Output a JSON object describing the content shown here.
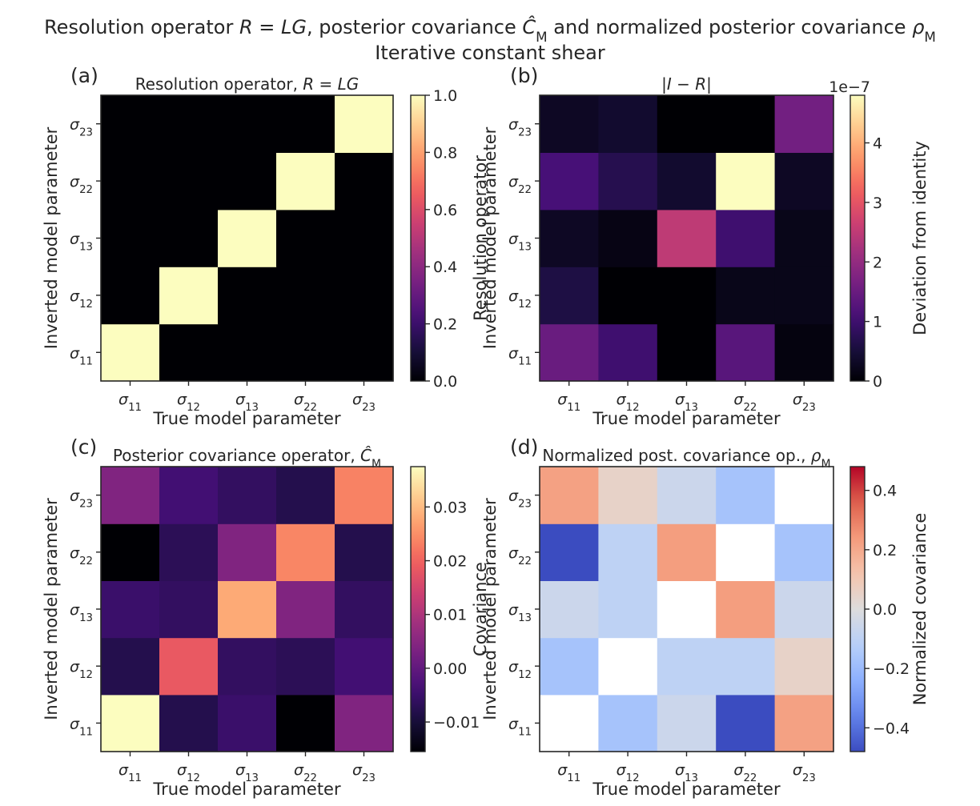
{
  "figure": {
    "suptitle_line1": "Resolution operator R = LG, posterior covariance Ĉ_M and normalized posterior covariance ρ_M",
    "suptitle_line2": "Iterative constant shear"
  },
  "chart_data": [
    {
      "panel_label": "(a)",
      "type": "heatmap",
      "title": "Resolution operator, R = LG",
      "xlabel": "True model parameter",
      "ylabel": "Inverted model parameter",
      "x_ticklabels": [
        "σ11",
        "σ12",
        "σ13",
        "σ22",
        "σ23"
      ],
      "y_ticklabels": [
        "σ11",
        "σ12",
        "σ13",
        "σ22",
        "σ23"
      ],
      "colormap": "magma",
      "colorbar": {
        "label": "Resolution operator",
        "min": 0.0,
        "max": 1.0,
        "ticks": [
          0.0,
          0.2,
          0.4,
          0.6,
          0.8,
          1.0
        ],
        "ticklabels": [
          "0.0",
          "0.2",
          "0.4",
          "0.6",
          "0.8",
          "1.0"
        ],
        "offset_text": ""
      },
      "matrix_rows_bottom_to_top": [
        [
          1,
          0,
          0,
          0,
          0
        ],
        [
          0,
          1,
          0,
          0,
          0
        ],
        [
          0,
          0,
          1,
          0,
          0
        ],
        [
          0,
          0,
          0,
          1,
          0
        ],
        [
          0,
          0,
          0,
          0,
          1
        ]
      ]
    },
    {
      "panel_label": "(b)",
      "type": "heatmap",
      "title": "|I − R|",
      "xlabel": "True model parameter",
      "ylabel": "Inverted model parameter",
      "x_ticklabels": [
        "σ11",
        "σ12",
        "σ13",
        "σ22",
        "σ23"
      ],
      "y_ticklabels": [
        "σ11",
        "σ12",
        "σ13",
        "σ22",
        "σ23"
      ],
      "colormap": "magma",
      "colorbar": {
        "label": "Deviation from identity",
        "min": 0.0,
        "max": 4.8,
        "ticks": [
          0,
          1,
          2,
          3,
          4
        ],
        "ticklabels": [
          "0",
          "1",
          "2",
          "3",
          "4"
        ],
        "offset_text": "1e−7"
      },
      "matrix_rows_bottom_to_top": [
        [
          1.5,
          1.0,
          0.0,
          1.3,
          0.1
        ],
        [
          0.6,
          0.0,
          0.0,
          0.2,
          0.2
        ],
        [
          0.3,
          0.15,
          2.5,
          1.0,
          0.2
        ],
        [
          1.1,
          0.7,
          0.4,
          4.8,
          0.3
        ],
        [
          0.3,
          0.4,
          0.0,
          0.0,
          1.6
        ]
      ]
    },
    {
      "panel_label": "(c)",
      "type": "heatmap",
      "title": "Posterior covariance operator, Ĉ_M",
      "xlabel": "True model parameter",
      "ylabel": "Inverted model parameter",
      "x_ticklabels": [
        "σ11",
        "σ12",
        "σ13",
        "σ22",
        "σ23"
      ],
      "y_ticklabels": [
        "σ11",
        "σ12",
        "σ13",
        "σ22",
        "σ23"
      ],
      "colormap": "magma",
      "colorbar": {
        "label": "Covariance",
        "min": -0.0155,
        "max": 0.0375,
        "ticks": [
          -0.01,
          0.0,
          0.01,
          0.02,
          0.03
        ],
        "ticklabels": [
          "−0.01",
          "0.00",
          "0.01",
          "0.02",
          "0.03"
        ],
        "offset_text": ""
      },
      "matrix_rows_bottom_to_top": [
        [
          0.0375,
          -0.008,
          -0.005,
          -0.0155,
          0.004
        ],
        [
          -0.008,
          0.0185,
          -0.006,
          -0.007,
          -0.004
        ],
        [
          -0.005,
          -0.006,
          0.028,
          0.004,
          -0.006
        ],
        [
          -0.0155,
          -0.007,
          0.004,
          0.024,
          -0.008
        ],
        [
          0.004,
          -0.004,
          -0.006,
          -0.008,
          0.0235
        ]
      ]
    },
    {
      "panel_label": "(d)",
      "type": "heatmap",
      "title": "Normalized post. covariance op., ρ_M",
      "xlabel": "True model parameter",
      "ylabel": "Inverted model parameter",
      "x_ticklabels": [
        "σ11",
        "σ12",
        "σ13",
        "σ22",
        "σ23"
      ],
      "y_ticklabels": [
        "σ11",
        "σ12",
        "σ13",
        "σ22",
        "σ23"
      ],
      "colormap": "coolwarm",
      "diagonal_masked": true,
      "colorbar": {
        "label": "Normalized covariance",
        "min": -0.48,
        "max": 0.48,
        "ticks": [
          -0.4,
          -0.2,
          0.0,
          0.2,
          0.4
        ],
        "ticklabels": [
          "−0.4",
          "−0.2",
          "0.0",
          "0.2",
          "0.4"
        ],
        "offset_text": ""
      },
      "matrix_rows_bottom_to_top": [
        [
          null,
          -0.17,
          -0.06,
          -0.48,
          0.22
        ],
        [
          -0.17,
          null,
          -0.1,
          -0.1,
          0.05
        ],
        [
          -0.06,
          -0.1,
          null,
          0.23,
          -0.06
        ],
        [
          -0.48,
          -0.1,
          0.23,
          null,
          -0.17
        ],
        [
          0.22,
          0.05,
          -0.06,
          -0.17,
          null
        ]
      ]
    }
  ]
}
